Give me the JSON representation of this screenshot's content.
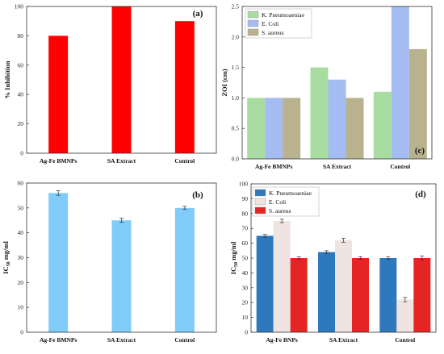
{
  "chart_data": [
    {
      "id": "a",
      "panel_label": "(a)",
      "type": "bar",
      "ylabel": "% Inhibition",
      "ylim": [
        0,
        100
      ],
      "yticks": [
        "0",
        "20",
        "40",
        "60",
        "80",
        "100"
      ],
      "categories": [
        "Ag-Fe BMNPs",
        "SA Extract",
        "Control"
      ],
      "series": [
        {
          "values": [
            80,
            100,
            90
          ],
          "color": "#ff0000"
        }
      ]
    },
    {
      "id": "b",
      "panel_label": "(b)",
      "type": "bar",
      "ylabel_main": "IC",
      "ylabel_sub": "50",
      "ylabel_rest": " mg/ml",
      "ylim": [
        0,
        60
      ],
      "yticks": [
        "0",
        "10",
        "20",
        "30",
        "40",
        "50",
        "60"
      ],
      "categories": [
        "Ag-Fe BMNPs",
        "SA Extract",
        "Control"
      ],
      "series": [
        {
          "values": [
            56,
            45,
            50
          ],
          "errors": [
            0.6,
            0.5,
            0.3
          ],
          "color": "#7fccf8"
        }
      ]
    },
    {
      "id": "c",
      "panel_label": "(c)",
      "type": "bar",
      "ylabel": "ZOI (cm)",
      "ylim": [
        0,
        2.5
      ],
      "yticks": [
        "0.0",
        "0.5",
        "1.0",
        "1.5",
        "2.0",
        "2.5"
      ],
      "categories": [
        "Ag-Fe BMNPs",
        "SA Extract",
        "Control"
      ],
      "legend_position": "top-left",
      "series": [
        {
          "name": "K. Pneumoaeniae",
          "values": [
            1.0,
            1.5,
            1.1
          ],
          "color": "#a9dca0"
        },
        {
          "name": "E. Coli",
          "values": [
            1.0,
            1.3,
            2.5
          ],
          "color": "#a4bcf2"
        },
        {
          "name": "S. aureus",
          "values": [
            1.0,
            1.0,
            1.8
          ],
          "color": "#b8b38e"
        }
      ]
    },
    {
      "id": "d",
      "panel_label": "(d)",
      "type": "bar",
      "ylabel_main": "IC",
      "ylabel_sub": "50",
      "ylabel_rest": " mg/ml",
      "ylim": [
        0,
        100
      ],
      "yticks": [
        "0",
        "10",
        "20",
        "30",
        "40",
        "50",
        "60",
        "70",
        "80",
        "90",
        "100"
      ],
      "categories": [
        "Ag-Fe BNPs",
        "SA Extract",
        "Control"
      ],
      "legend_position": "top-left",
      "series": [
        {
          "name": "K. Pneumoaeniae",
          "values": [
            65,
            54,
            50
          ],
          "errors": [
            0.4,
            0.4,
            0.4
          ],
          "color": "#2e78bd"
        },
        {
          "name": "E. Coli",
          "values": [
            75,
            62,
            22
          ],
          "errors": [
            0.6,
            0.8,
            0.9
          ],
          "color": "#efe4e2"
        },
        {
          "name": "S. aureus",
          "values": [
            50,
            50,
            50
          ],
          "errors": [
            0.4,
            0.4,
            0.8
          ],
          "color": "#e52424"
        }
      ]
    }
  ]
}
